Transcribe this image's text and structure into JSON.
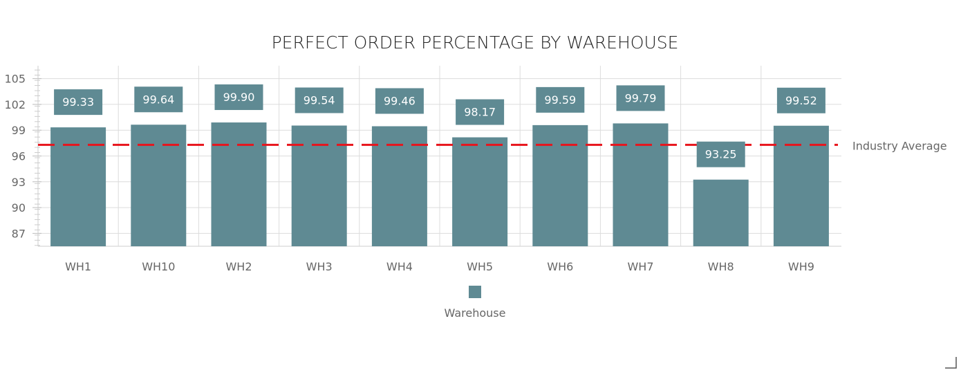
{
  "chart_data": {
    "type": "bar",
    "title": "PERFECT ORDER PERCENTAGE BY WAREHOUSE",
    "categories": [
      "WH1",
      "WH10",
      "WH2",
      "WH3",
      "WH4",
      "WH5",
      "WH6",
      "WH7",
      "WH8",
      "WH9"
    ],
    "series": [
      {
        "name": "Warehouse",
        "color": "#5f8a93",
        "values": [
          99.33,
          99.64,
          99.9,
          99.54,
          99.46,
          98.17,
          99.59,
          99.79,
          93.25,
          99.52
        ]
      }
    ],
    "reference_line": {
      "label": "Industry Average",
      "value": 97.3,
      "color": "#e8141c",
      "style": "dashed"
    },
    "yticks": [
      87,
      90,
      93,
      96,
      99,
      102,
      105
    ],
    "ylim": [
      85.5,
      106.5
    ],
    "xlabel": "",
    "ylabel": "",
    "grid": true,
    "legend_position": "bottom",
    "data_labels": true
  }
}
